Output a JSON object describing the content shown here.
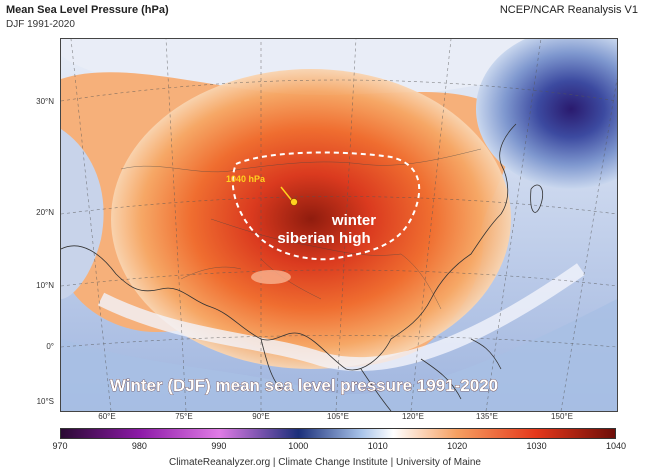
{
  "header": {
    "title": "Mean Sea Level Pressure (hPa)",
    "subtitle": "DJF 1991-2020",
    "source": "NCEP/NCAR Reanalysis V1"
  },
  "map": {
    "latitude_labels": [
      "30°N",
      "20°N",
      "10°N",
      "0°",
      "10°S"
    ],
    "longitude_labels": [
      "60°E",
      "75°E",
      "90°E",
      "105°E",
      "120°E",
      "135°E",
      "150°E"
    ],
    "annotations": {
      "pressure_marker": "1040 hPa",
      "region_label_line1": "winter",
      "region_label_line2": "siberian high",
      "caption": "Winter (DJF) mean sea level pressure 1991-2020"
    },
    "colors": {
      "annotation_yellow": "#ffd21f",
      "caption_white": "#ffffff"
    }
  },
  "colorbar": {
    "unit": "hPa",
    "range": [
      970,
      1040
    ],
    "tick_labels": [
      "970",
      "980",
      "990",
      "1000",
      "1010",
      "1020",
      "1030",
      "1040"
    ],
    "stops": [
      {
        "value": 970,
        "color": "#2a0a33"
      },
      {
        "value": 980,
        "color": "#8d1aa8"
      },
      {
        "value": 990,
        "color": "#e07be6"
      },
      {
        "value": 1000,
        "color": "#1b2f7a"
      },
      {
        "value": 1008,
        "color": "#a9c4ea"
      },
      {
        "value": 1012,
        "color": "#ffffff"
      },
      {
        "value": 1020,
        "color": "#f6a062"
      },
      {
        "value": 1030,
        "color": "#e5381b"
      },
      {
        "value": 1040,
        "color": "#6e0d08"
      }
    ]
  },
  "footer": {
    "credit": "ClimateReanalyzer.org | Climate Change Institute | University of Maine"
  }
}
